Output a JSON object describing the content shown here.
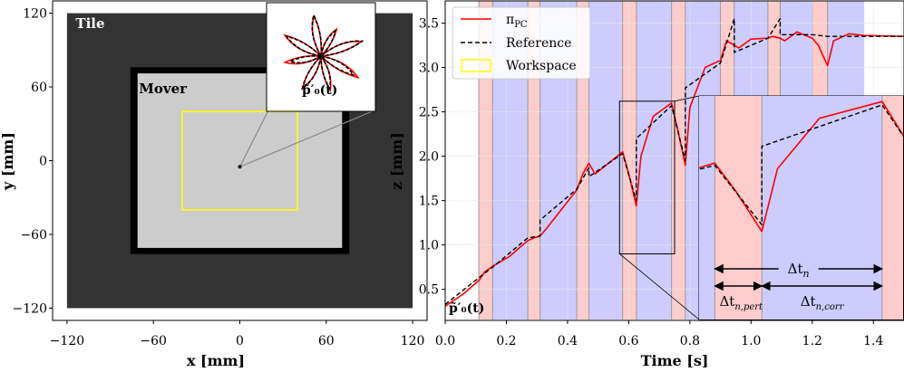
{
  "colors": {
    "tile": "#333333",
    "mover_border": "#000000",
    "mover_fill": "#cccccc",
    "workspace": "#ffff00",
    "pi_pc": "#ff0000",
    "reference": "#000000",
    "pert_band": "#ffcccc",
    "corr_band": "#ccccff"
  },
  "chart_data": [
    {
      "type": "scatter",
      "title": "",
      "xlabel": "x [mm]",
      "ylabel": "y [mm]",
      "xlim": [
        -130,
        130
      ],
      "ylim": [
        -130,
        130
      ],
      "xticks": [
        -120,
        -60,
        0,
        60,
        120
      ],
      "yticks": [
        -120,
        -60,
        0,
        60,
        120
      ],
      "xtick_labels": [
        "−120",
        "−60",
        "0",
        "60",
        "120"
      ],
      "ytick_labels": [
        "−120",
        "−60",
        "0",
        "60",
        "120"
      ],
      "tile": {
        "label": "Tile",
        "x": [
          -120,
          120
        ],
        "y": [
          -120,
          120
        ]
      },
      "mover": {
        "label": "Mover",
        "x": [
          -76,
          76
        ],
        "y": [
          -76,
          76
        ]
      },
      "mover_inner": {
        "x": [
          -71,
          71
        ],
        "y": [
          -71,
          71
        ]
      },
      "workspace": {
        "label": "Workspace",
        "x": [
          -40,
          40
        ],
        "y": [
          -40,
          40
        ]
      },
      "center_point": {
        "x": 0,
        "y": -5
      },
      "inset_label": "p̃′₀(t)",
      "inset_xlim": [
        -2.5,
        2.5
      ],
      "inset_ylim": [
        -2.5,
        2.5
      ],
      "trajectory_tips": [
        {
          "angle": 100,
          "r": 2.1
        },
        {
          "angle": 150,
          "r": 2.0
        },
        {
          "angle": 190,
          "r": 1.6
        },
        {
          "angle": 240,
          "r": 1.9
        },
        {
          "angle": 285,
          "r": 1.7
        },
        {
          "angle": 330,
          "r": 1.9
        },
        {
          "angle": 20,
          "r": 2.2
        },
        {
          "angle": 60,
          "r": 1.5
        }
      ]
    },
    {
      "type": "line",
      "title": "",
      "xlabel": "Time [s]",
      "ylabel": "z [mm]",
      "xlim": [
        0,
        1.5
      ],
      "ylim": [
        0.15,
        3.75
      ],
      "xticks": [
        0.0,
        0.2,
        0.4,
        0.6,
        0.8,
        1.0,
        1.2,
        1.4
      ],
      "xtick_labels": [
        "0.0",
        "0.2",
        "0.4",
        "0.6",
        "0.8",
        "1.0",
        "1.2",
        "1.4"
      ],
      "yticks": [
        0.5,
        1.0,
        1.5,
        2.0,
        2.5,
        3.0,
        3.5
      ],
      "ytick_labels": [
        "0.5",
        "1.0",
        "1.5",
        "2.0",
        "2.5",
        "3.0",
        "3.5"
      ],
      "legend": {
        "placement": "top-left",
        "entries": [
          "π_PC",
          "Reference",
          "Workspace"
        ]
      },
      "legend_pi_main": "π",
      "legend_pi_sub": "PC",
      "bottom_left_label": "p̃′₀(t)",
      "bands": [
        {
          "t0": 0.11,
          "t1": 0.155,
          "kind": "pert"
        },
        {
          "t0": 0.155,
          "t1": 0.27,
          "kind": "corr"
        },
        {
          "t0": 0.27,
          "t1": 0.31,
          "kind": "pert"
        },
        {
          "t0": 0.31,
          "t1": 0.43,
          "kind": "corr"
        },
        {
          "t0": 0.43,
          "t1": 0.47,
          "kind": "pert"
        },
        {
          "t0": 0.47,
          "t1": 0.58,
          "kind": "corr"
        },
        {
          "t0": 0.58,
          "t1": 0.625,
          "kind": "pert"
        },
        {
          "t0": 0.625,
          "t1": 0.74,
          "kind": "corr"
        },
        {
          "t0": 0.74,
          "t1": 0.785,
          "kind": "pert"
        },
        {
          "t0": 0.785,
          "t1": 0.9,
          "kind": "corr"
        },
        {
          "t0": 0.9,
          "t1": 0.945,
          "kind": "pert"
        },
        {
          "t0": 0.945,
          "t1": 1.055,
          "kind": "corr"
        },
        {
          "t0": 1.055,
          "t1": 1.095,
          "kind": "pert"
        },
        {
          "t0": 1.095,
          "t1": 1.2,
          "kind": "corr"
        },
        {
          "t0": 1.2,
          "t1": 1.25,
          "kind": "pert"
        },
        {
          "t0": 1.25,
          "t1": 1.37,
          "kind": "corr"
        }
      ],
      "series": [
        {
          "name": "Reference",
          "style": "dashed",
          "x": [
            0.0,
            0.11,
            0.155,
            0.27,
            0.31,
            0.31,
            0.43,
            0.47,
            0.47,
            0.58,
            0.625,
            0.625,
            0.74,
            0.785,
            0.785,
            0.9,
            0.945,
            0.945,
            1.055,
            1.095,
            1.095,
            1.2,
            1.25,
            1.25,
            1.37,
            1.5
          ],
          "y": [
            0.33,
            0.63,
            0.75,
            1.08,
            1.1,
            1.28,
            1.63,
            1.87,
            1.77,
            2.03,
            1.5,
            2.2,
            2.57,
            1.95,
            2.77,
            3.05,
            3.55,
            3.17,
            3.33,
            3.55,
            3.37,
            3.37,
            3.35,
            3.35,
            3.35,
            3.35
          ]
        },
        {
          "name": "π_PC",
          "style": "solid",
          "x": [
            0.0,
            0.06,
            0.11,
            0.13,
            0.155,
            0.21,
            0.27,
            0.29,
            0.31,
            0.33,
            0.43,
            0.45,
            0.47,
            0.49,
            0.58,
            0.6,
            0.625,
            0.64,
            0.68,
            0.74,
            0.76,
            0.785,
            0.8,
            0.85,
            0.9,
            0.92,
            0.945,
            0.96,
            1.0,
            1.055,
            1.07,
            1.095,
            1.11,
            1.15,
            1.2,
            1.22,
            1.25,
            1.27,
            1.32,
            1.37,
            1.5
          ],
          "y": [
            0.31,
            0.45,
            0.6,
            0.7,
            0.76,
            0.87,
            1.05,
            1.08,
            1.1,
            1.18,
            1.62,
            1.8,
            1.92,
            1.8,
            2.05,
            1.8,
            1.44,
            2.0,
            2.45,
            2.6,
            2.3,
            1.9,
            2.55,
            3.0,
            3.08,
            3.3,
            3.25,
            3.22,
            3.32,
            3.33,
            3.35,
            3.33,
            3.3,
            3.4,
            3.33,
            3.25,
            3.02,
            3.3,
            3.38,
            3.36,
            3.35
          ]
        }
      ],
      "zoom": {
        "src_t": [
          0.57,
          0.75
        ],
        "src_z": [
          0.9,
          2.62
        ],
        "pert_t": [
          0.58,
          0.625
        ],
        "corr_t": [
          0.625,
          0.74
        ],
        "arrow_total_label_main": "Δt",
        "arrow_total_label_sub": "n",
        "arrow_pert_label_main": "Δt",
        "arrow_pert_label_sub": "n,pert",
        "arrow_corr_label_main": "Δt",
        "arrow_corr_label_sub": "n,corr"
      }
    }
  ]
}
